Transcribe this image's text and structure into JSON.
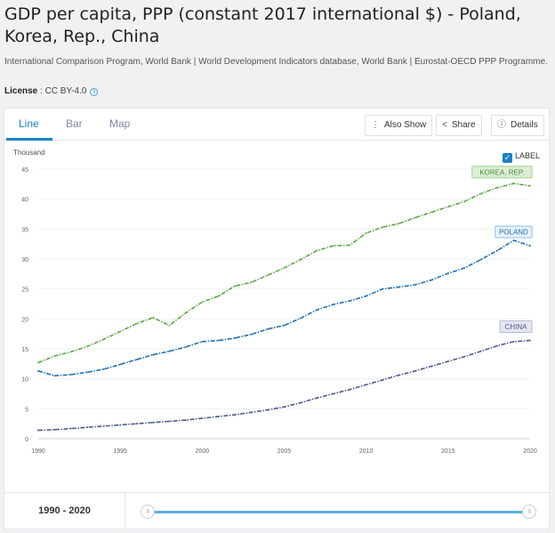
{
  "header": {
    "title": "GDP per capita, PPP (constant 2017 international $) - Poland, Korea, Rep., China",
    "source": "International Comparison Program, World Bank | World Development Indicators database, World Bank | Eurostat-OECD PPP Programme.",
    "license_label": "License",
    "license_value": " : CC BY-4.0"
  },
  "tabs": [
    "Line",
    "Bar",
    "Map"
  ],
  "toolbar": {
    "also_show": "Also Show",
    "share": "Share",
    "details": "Details"
  },
  "label_toggle": {
    "label": "LABEL",
    "checked": true
  },
  "range": {
    "label": "1990 - 2020"
  },
  "chart_data": {
    "type": "line",
    "title": "",
    "xlabel": "",
    "ylabel": "Thousand",
    "x": [
      1990,
      1991,
      1992,
      1993,
      1994,
      1995,
      1996,
      1997,
      1998,
      1999,
      2000,
      2001,
      2002,
      2003,
      2004,
      2005,
      2006,
      2007,
      2008,
      2009,
      2010,
      2011,
      2012,
      2013,
      2014,
      2015,
      2016,
      2017,
      2018,
      2019,
      2020
    ],
    "xticks": [
      1990,
      1995,
      2000,
      2005,
      2010,
      2015,
      2020
    ],
    "ylim": [
      0,
      45
    ],
    "yticks": [
      0,
      5,
      10,
      15,
      20,
      25,
      30,
      35,
      40,
      45
    ],
    "grid": "horizontal",
    "series": [
      {
        "name": "KOREA, REP.",
        "color": "#5ea64a",
        "label_bg": "#dcefd6",
        "label_border": "#9fcf92",
        "label_color": "#4a8a3a",
        "values": [
          12.7,
          13.8,
          14.5,
          15.4,
          16.6,
          17.9,
          19.2,
          20.2,
          18.9,
          21.0,
          22.8,
          23.8,
          25.5,
          26.1,
          27.3,
          28.5,
          29.9,
          31.4,
          32.2,
          32.3,
          34.3,
          35.3,
          35.9,
          36.9,
          37.8,
          38.7,
          39.6,
          40.9,
          41.9,
          42.6,
          42.2
        ]
      },
      {
        "name": "POLAND",
        "color": "#1f6fb5",
        "label_bg": "#e8f2fb",
        "label_border": "#8fbfe6",
        "label_color": "#1f6fb5",
        "values": [
          11.3,
          10.5,
          10.7,
          11.1,
          11.6,
          12.4,
          13.2,
          14.0,
          14.6,
          15.3,
          16.2,
          16.4,
          16.8,
          17.4,
          18.3,
          18.9,
          20.1,
          21.5,
          22.4,
          23.0,
          23.8,
          25.0,
          25.3,
          25.7,
          26.5,
          27.6,
          28.5,
          29.9,
          31.4,
          33.1,
          32.2
        ]
      },
      {
        "name": "CHINA",
        "color": "#4e5a8c",
        "label_bg": "#e6e7f3",
        "label_border": "#b3b6d4",
        "label_color": "#4e5a8c",
        "values": [
          1.4,
          1.5,
          1.7,
          1.9,
          2.1,
          2.3,
          2.5,
          2.7,
          2.9,
          3.1,
          3.4,
          3.7,
          4.0,
          4.4,
          4.8,
          5.3,
          6.0,
          6.8,
          7.5,
          8.2,
          9.0,
          9.8,
          10.6,
          11.3,
          12.1,
          12.9,
          13.7,
          14.6,
          15.5,
          16.2,
          16.4
        ]
      }
    ]
  }
}
